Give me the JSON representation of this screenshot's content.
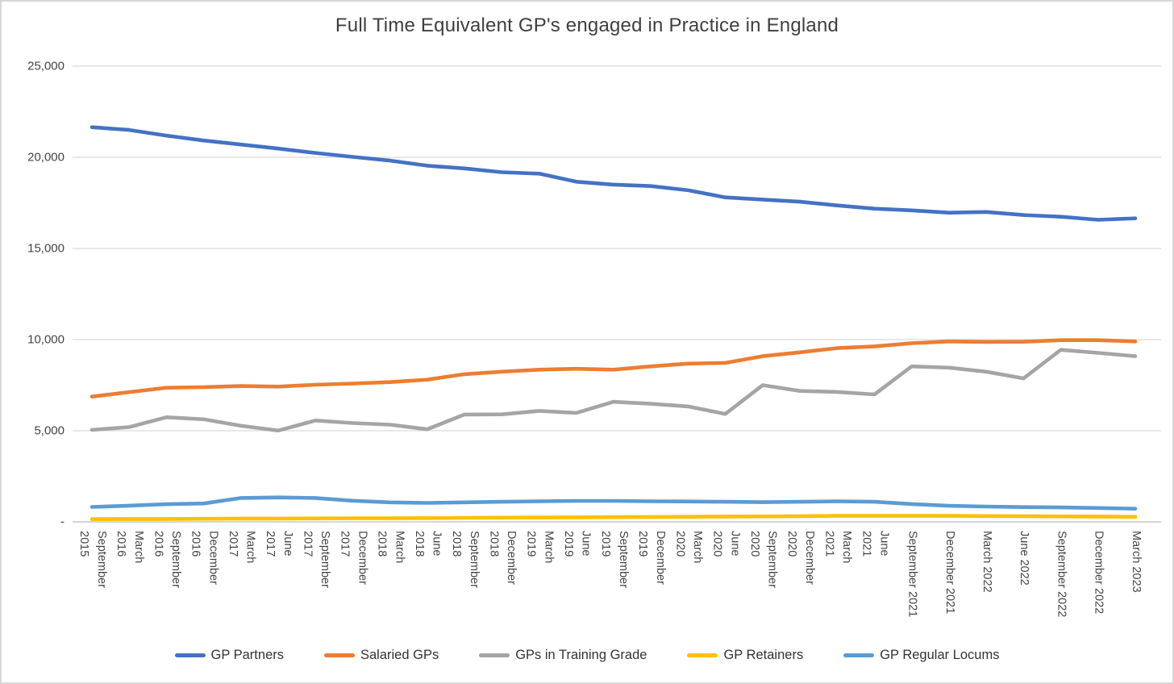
{
  "chart_data": {
    "type": "line",
    "title": "Full Time Equivalent GP's engaged in Practice in England",
    "categories": [
      "September 2015",
      "March 2016",
      "September 2016",
      "December 2016",
      "March 2017",
      "June 2017",
      "September 2017",
      "December 2017",
      "March 2018",
      "June 2018",
      "September 2018",
      "December 2018",
      "March 2019",
      "June 2019",
      "September 2019",
      "December 2019",
      "March 2020",
      "June 2020",
      "September 2020",
      "December 2020",
      "March 2021",
      "June 2021",
      "September 2021",
      "December 2021",
      "March 2022",
      "June 2022",
      "September 2022",
      "December 2022",
      "March 2023"
    ],
    "series": [
      {
        "name": "GP Partners",
        "color": "#4472C4",
        "values": [
          21650,
          21500,
          21190,
          20920,
          20700,
          20480,
          20240,
          20020,
          19820,
          19540,
          19390,
          19180,
          19100,
          18660,
          18500,
          18420,
          18190,
          17800,
          17680,
          17560,
          17360,
          17180,
          17090,
          16960,
          17000,
          16830,
          16740,
          16570,
          16650
        ]
      },
      {
        "name": "Salaried GPs",
        "color": "#ED7D31",
        "values": [
          6870,
          7120,
          7360,
          7390,
          7450,
          7420,
          7520,
          7590,
          7670,
          7800,
          8100,
          8240,
          8350,
          8400,
          8350,
          8530,
          8680,
          8720,
          9090,
          9300,
          9530,
          9630,
          9800,
          9900,
          9870,
          9880,
          9970,
          9970,
          9900
        ]
      },
      {
        "name": "GPs in Training Grade",
        "color": "#A5A5A5",
        "values": [
          5050,
          5200,
          5740,
          5630,
          5270,
          5010,
          5560,
          5420,
          5330,
          5080,
          5890,
          5900,
          6090,
          5980,
          6590,
          6480,
          6330,
          5920,
          7500,
          7180,
          7130,
          6990,
          8530,
          8460,
          8240,
          7870,
          9440,
          9270,
          9090
        ]
      },
      {
        "name": "GP Retainers",
        "color": "#FFC000",
        "values": [
          150,
          160,
          160,
          170,
          180,
          180,
          190,
          200,
          200,
          210,
          220,
          230,
          240,
          250,
          260,
          270,
          280,
          290,
          300,
          310,
          330,
          330,
          330,
          330,
          320,
          310,
          300,
          290,
          280
        ]
      },
      {
        "name": "GP Regular Locums",
        "color": "#5B9BD5",
        "values": [
          820,
          890,
          970,
          1010,
          1310,
          1340,
          1310,
          1160,
          1070,
          1040,
          1070,
          1100,
          1130,
          1150,
          1150,
          1130,
          1120,
          1100,
          1080,
          1100,
          1130,
          1100,
          980,
          880,
          840,
          810,
          790,
          760,
          720
        ]
      }
    ],
    "ylim": [
      0,
      25000
    ],
    "y_ticks": [
      {
        "value": 25000,
        "label": "25,000"
      },
      {
        "value": 20000,
        "label": "20,000"
      },
      {
        "value": 15000,
        "label": "15,000"
      },
      {
        "value": 10000,
        "label": "10,000"
      },
      {
        "value": 5000,
        "label": "5,000"
      },
      {
        "value": 0,
        "label": "-"
      }
    ],
    "grid": true,
    "legend_position": "bottom",
    "gridline_color": "#D9D9D9",
    "axis_line_color": "#C9C9C9"
  }
}
